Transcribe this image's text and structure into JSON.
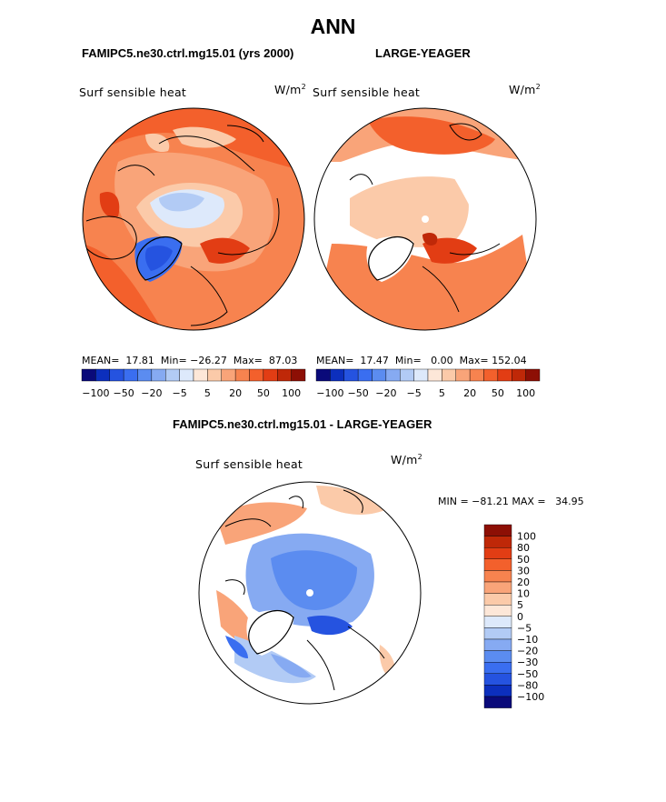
{
  "title": "ANN",
  "panels": [
    {
      "id": "left",
      "run_label": "FAMIPC5.ne30.ctrl.mg15.01 (yrs 2000)",
      "variable": "Surf sensible heat",
      "units": "W/m",
      "units_exp": "2",
      "stats": {
        "mean_label": "MEAN=",
        "mean": "17.81",
        "min_label": "Min=",
        "min": "−26.27",
        "max_label": "Max=",
        "max": "87.03"
      }
    },
    {
      "id": "right",
      "run_label": "LARGE-YEAGER",
      "variable": "Surf sensible heat",
      "units": "W/m",
      "units_exp": "2",
      "stats": {
        "mean_label": "MEAN=",
        "mean": "17.47",
        "min_label": "Min=",
        "min": "0.00",
        "max_label": "Max=",
        "max": "152.04"
      }
    }
  ],
  "hbar": {
    "colors": [
      "#0a0a7a",
      "#0c2fbd",
      "#2553e0",
      "#3a6ef0",
      "#5b8cf0",
      "#86aaf2",
      "#b2cbf5",
      "#dde9fb",
      "#fde7d8",
      "#fbcaa9",
      "#f9a479",
      "#f7834f",
      "#f3602c",
      "#e23d14",
      "#bf2808",
      "#8d0f05"
    ],
    "tick_labels": [
      "−100",
      "−50",
      "−20",
      "−5",
      "5",
      "20",
      "50",
      "100"
    ]
  },
  "diff": {
    "title": "FAMIPC5.ne30.ctrl.mg15.01 - LARGE-YEAGER",
    "variable": "Surf sensible heat",
    "units": "W/m",
    "units_exp": "2",
    "minmax_text": "MIN = −81.21 MAX =   34.95"
  },
  "vbar": {
    "colors_top_to_bottom": [
      "#8d0f05",
      "#bf2808",
      "#e23d14",
      "#f3602c",
      "#f7834f",
      "#f9a479",
      "#fbcaa9",
      "#fde7d8",
      "#dde9fb",
      "#b2cbf5",
      "#86aaf2",
      "#5b8cf0",
      "#3a6ef0",
      "#2553e0",
      "#0c2fbd",
      "#0a0a7a"
    ],
    "labels_top_to_bottom": [
      "100",
      "80",
      "50",
      "30",
      "20",
      "10",
      "5",
      "0",
      "−5",
      "−10",
      "−20",
      "−30",
      "−50",
      "−80",
      "−100"
    ]
  }
}
